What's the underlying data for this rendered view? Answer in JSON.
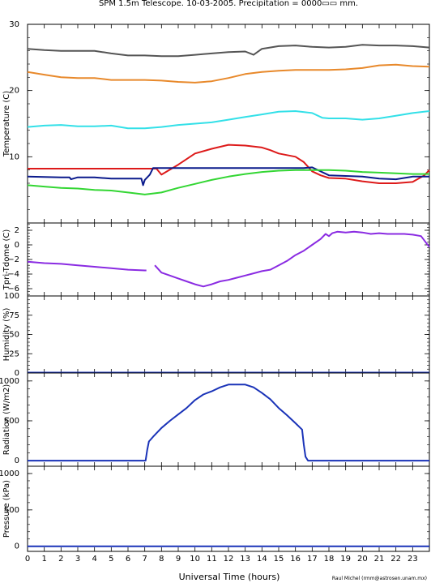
{
  "title": "SPM 1.5m Telescope. 10-03-2005. Precipitation = 0000▭▭ mm.",
  "xlabel": "Universal Time (hours)",
  "credit": "Raul Michel (rmm@astrosen.unam.mx)",
  "colors": {
    "dark_gray": "#555555",
    "orange": "#e8892b",
    "cyan": "#33e0e8",
    "red": "#dd1a1a",
    "navy": "#0a1a8c",
    "green": "#33d633",
    "purple": "#8a2be2",
    "blue": "#1a33b8"
  },
  "chart_data": [
    {
      "type": "line",
      "ylabel": "Temperature (C)",
      "ylim": [
        0,
        30
      ],
      "yticks": [
        10,
        20,
        30
      ],
      "xlim": [
        0,
        24
      ],
      "xticks": [
        0,
        1,
        2,
        3,
        4,
        5,
        6,
        7,
        8,
        9,
        10,
        11,
        12,
        13,
        14,
        15,
        16,
        17,
        18,
        19,
        20,
        21,
        22,
        23
      ],
      "series": [
        {
          "color": "dark_gray",
          "x": [
            0,
            1,
            2,
            3,
            4,
            5,
            6,
            7,
            8,
            9,
            10,
            11,
            12,
            13,
            13.5,
            14,
            15,
            16,
            17,
            18,
            19,
            20,
            21,
            22,
            23,
            24
          ],
          "y": [
            26.3,
            26.1,
            26.0,
            26.0,
            26.0,
            25.6,
            25.3,
            25.3,
            25.2,
            25.2,
            25.4,
            25.6,
            25.8,
            25.9,
            25.4,
            26.3,
            26.7,
            26.8,
            26.6,
            26.5,
            26.6,
            26.9,
            26.8,
            26.8,
            26.7,
            26.5
          ]
        },
        {
          "color": "orange",
          "x": [
            0,
            1,
            2,
            3,
            4,
            5,
            6,
            7,
            8,
            9,
            10,
            11,
            12,
            13,
            14,
            15,
            16,
            17,
            18,
            19,
            20,
            21,
            22,
            23,
            24
          ],
          "y": [
            22.8,
            22.4,
            22.0,
            21.9,
            21.9,
            21.6,
            21.6,
            21.6,
            21.5,
            21.3,
            21.2,
            21.4,
            21.9,
            22.5,
            22.8,
            23.0,
            23.1,
            23.1,
            23.1,
            23.2,
            23.4,
            23.8,
            23.9,
            23.7,
            23.6
          ]
        },
        {
          "color": "cyan",
          "x": [
            0,
            1,
            2,
            3,
            4,
            5,
            6,
            7,
            8,
            9,
            10,
            11,
            12,
            13,
            14,
            15,
            16,
            17,
            17.6,
            18,
            19,
            20,
            21,
            22,
            23,
            24
          ],
          "y": [
            14.5,
            14.7,
            14.8,
            14.6,
            14.6,
            14.7,
            14.3,
            14.3,
            14.5,
            14.8,
            15.0,
            15.2,
            15.6,
            16.0,
            16.4,
            16.8,
            16.9,
            16.6,
            15.9,
            15.8,
            15.8,
            15.6,
            15.8,
            16.2,
            16.6,
            16.9
          ]
        },
        {
          "color": "red",
          "x": [
            0,
            7.7,
            8,
            9,
            10,
            11,
            12,
            13,
            14,
            14.5,
            15,
            16,
            16.5,
            17,
            17.5,
            18,
            19,
            20,
            21,
            22,
            23,
            23.7,
            24
          ],
          "y": [
            8.2,
            8.2,
            7.3,
            8.8,
            10.5,
            11.2,
            11.8,
            11.7,
            11.4,
            11.0,
            10.5,
            10.0,
            9.2,
            7.8,
            7.2,
            6.8,
            6.7,
            6.3,
            6.0,
            6.0,
            6.2,
            7.2,
            8.0
          ]
        },
        {
          "color": "navy",
          "x": [
            0,
            2,
            2.5,
            2.6,
            3,
            4,
            5,
            6,
            6.8,
            6.9,
            7,
            7.3,
            7.5,
            8,
            9,
            10,
            11,
            12,
            13,
            14,
            15,
            16,
            16.5,
            17,
            18,
            19,
            20,
            21,
            22,
            23,
            24
          ],
          "y": [
            7.0,
            6.9,
            6.9,
            6.6,
            6.9,
            6.9,
            6.7,
            6.7,
            6.7,
            5.7,
            6.5,
            7.3,
            8.3,
            8.3,
            8.3,
            8.3,
            8.3,
            8.3,
            8.3,
            8.3,
            8.3,
            8.3,
            8.3,
            8.4,
            7.2,
            7.1,
            7.0,
            6.7,
            6.6,
            7.0,
            7.0
          ]
        },
        {
          "color": "green",
          "x": [
            0,
            1,
            2,
            3,
            4,
            5,
            6,
            7,
            8,
            9,
            10,
            11,
            12,
            13,
            14,
            15,
            16,
            17,
            18,
            19,
            20,
            21,
            22,
            23,
            24
          ],
          "y": [
            5.7,
            5.5,
            5.3,
            5.2,
            5.0,
            4.9,
            4.6,
            4.3,
            4.6,
            5.3,
            5.9,
            6.5,
            7.0,
            7.4,
            7.7,
            7.9,
            8.0,
            8.0,
            8.0,
            7.9,
            7.7,
            7.6,
            7.5,
            7.4,
            7.4
          ]
        }
      ]
    },
    {
      "type": "line",
      "ylabel": "Tpri-Tdome (C)",
      "ylim": [
        -7,
        3
      ],
      "yticks": [
        -6,
        -4,
        -2,
        0,
        2
      ],
      "ytick_labels": [
        "−6",
        "−4",
        "−2",
        "0",
        "2"
      ],
      "xlim": [
        0,
        24
      ],
      "series": [
        {
          "color": "purple",
          "x": [
            0,
            1,
            2,
            3,
            4,
            5,
            6,
            7,
            7.1
          ],
          "y": [
            -2.3,
            -2.5,
            -2.6,
            -2.8,
            -3.0,
            -3.2,
            -3.4,
            -3.5,
            -3.5
          ]
        },
        {
          "color": "purple",
          "x": [
            7.6,
            7.8,
            8,
            8.5,
            9,
            9.5,
            10,
            10.5,
            11,
            11.5,
            12,
            12.5,
            13,
            13.5,
            14,
            14.5,
            15,
            15.5,
            16,
            16.5,
            17,
            17.5,
            17.8,
            18,
            18.2,
            18.5,
            19,
            19.5,
            20,
            20.5,
            21,
            21.5,
            22,
            22.5,
            23,
            23.5,
            24
          ],
          "y": [
            -2.8,
            -3.3,
            -3.8,
            -4.2,
            -4.6,
            -5.0,
            -5.4,
            -5.7,
            -5.4,
            -5.0,
            -4.8,
            -4.5,
            -4.2,
            -3.9,
            -3.6,
            -3.4,
            -2.8,
            -2.2,
            -1.4,
            -0.8,
            0.0,
            0.8,
            1.5,
            1.2,
            1.6,
            1.8,
            1.7,
            1.8,
            1.7,
            1.5,
            1.6,
            1.5,
            1.5,
            1.5,
            1.4,
            1.2,
            -0.3
          ]
        }
      ]
    },
    {
      "type": "line",
      "ylabel": "Humidity (%)",
      "ylim": [
        0,
        100
      ],
      "yticks": [
        0,
        25,
        50,
        75,
        100
      ],
      "xlim": [
        0,
        24
      ],
      "series": [
        {
          "color": "blue",
          "x": [
            0,
            24
          ],
          "y": [
            0.5,
            0.5
          ]
        }
      ]
    },
    {
      "type": "line",
      "ylabel": "Radiation (W/m2)",
      "ylim": [
        -70,
        1100
      ],
      "yticks": [
        0,
        500,
        1000
      ],
      "xlim": [
        0,
        24
      ],
      "series": [
        {
          "color": "blue",
          "x": [
            0,
            7.05,
            7.15,
            7.25,
            7.5,
            8,
            8.5,
            9,
            9.5,
            10,
            10.5,
            11,
            11.5,
            12,
            12.5,
            13,
            13.5,
            14,
            14.5,
            15,
            15.5,
            16,
            16.4,
            16.5,
            16.6,
            16.75,
            24
          ],
          "y": [
            0,
            0,
            140,
            240,
            300,
            410,
            500,
            580,
            660,
            760,
            830,
            870,
            920,
            955,
            955,
            955,
            920,
            850,
            770,
            660,
            570,
            470,
            390,
            200,
            50,
            0,
            0
          ]
        }
      ]
    },
    {
      "type": "line",
      "ylabel": "Pressure (kPa)",
      "ylim": [
        -70,
        1100
      ],
      "yticks": [
        0,
        500,
        1000
      ],
      "xlim": [
        0,
        24
      ],
      "series": [
        {
          "color": "blue",
          "x": [
            0,
            24
          ],
          "y": [
            0,
            0
          ]
        }
      ]
    }
  ]
}
